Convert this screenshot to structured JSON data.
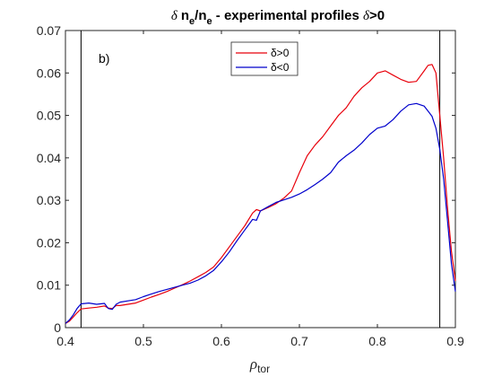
{
  "chart_data": {
    "type": "line",
    "title": {
      "delta": "δ",
      "n": "n",
      "sub_e": "e",
      "slash": "/n",
      "sub_e2": "e",
      "rest": " - experimental profiles ",
      "delta2": "δ",
      "cond": ">0"
    },
    "xlabel": {
      "rho": "ρ",
      "sub": "tor"
    },
    "ylabel": "",
    "panel_label": "b)",
    "xlim": [
      0.4,
      0.9
    ],
    "ylim": [
      0,
      0.07
    ],
    "xticks": [
      "0.4",
      "0.5",
      "0.6",
      "0.7",
      "0.8",
      "0.9"
    ],
    "yticks": [
      "0",
      "0.01",
      "0.02",
      "0.03",
      "0.04",
      "0.05",
      "0.06",
      "0.07"
    ],
    "vlines": [
      0.42,
      0.88
    ],
    "legend_position": "top-center",
    "grid": false,
    "series": [
      {
        "name": "δ>0",
        "color": "#e8000b",
        "x": [
          0.4,
          0.405,
          0.41,
          0.415,
          0.42,
          0.43,
          0.44,
          0.45,
          0.455,
          0.46,
          0.465,
          0.47,
          0.48,
          0.49,
          0.5,
          0.51,
          0.52,
          0.53,
          0.54,
          0.55,
          0.56,
          0.57,
          0.58,
          0.59,
          0.6,
          0.61,
          0.62,
          0.63,
          0.64,
          0.645,
          0.65,
          0.66,
          0.67,
          0.68,
          0.69,
          0.7,
          0.71,
          0.72,
          0.73,
          0.74,
          0.75,
          0.76,
          0.77,
          0.78,
          0.79,
          0.8,
          0.81,
          0.82,
          0.83,
          0.84,
          0.85,
          0.86,
          0.865,
          0.87,
          0.875,
          0.88,
          0.885,
          0.89,
          0.895,
          0.9
        ],
        "y": [
          0.001,
          0.0015,
          0.0025,
          0.0035,
          0.0044,
          0.0046,
          0.0048,
          0.0051,
          0.0046,
          0.0045,
          0.0052,
          0.0052,
          0.0055,
          0.0058,
          0.0065,
          0.0072,
          0.0078,
          0.0085,
          0.0093,
          0.0101,
          0.011,
          0.012,
          0.013,
          0.0143,
          0.0165,
          0.019,
          0.0215,
          0.024,
          0.027,
          0.0278,
          0.0275,
          0.0283,
          0.0292,
          0.0305,
          0.0322,
          0.0365,
          0.0405,
          0.043,
          0.045,
          0.0475,
          0.05,
          0.0518,
          0.0545,
          0.0565,
          0.058,
          0.06,
          0.0605,
          0.0595,
          0.0585,
          0.0578,
          0.058,
          0.0605,
          0.0618,
          0.062,
          0.06,
          0.05,
          0.04,
          0.028,
          0.018,
          0.011
        ]
      },
      {
        "name": "δ<0",
        "color": "#0000cc",
        "x": [
          0.4,
          0.405,
          0.41,
          0.415,
          0.42,
          0.43,
          0.44,
          0.45,
          0.455,
          0.46,
          0.465,
          0.47,
          0.48,
          0.49,
          0.5,
          0.51,
          0.52,
          0.53,
          0.54,
          0.55,
          0.56,
          0.57,
          0.58,
          0.59,
          0.6,
          0.61,
          0.62,
          0.63,
          0.64,
          0.645,
          0.65,
          0.66,
          0.67,
          0.68,
          0.69,
          0.7,
          0.71,
          0.72,
          0.73,
          0.74,
          0.75,
          0.76,
          0.77,
          0.78,
          0.79,
          0.8,
          0.81,
          0.82,
          0.83,
          0.84,
          0.85,
          0.86,
          0.865,
          0.87,
          0.875,
          0.88,
          0.885,
          0.89,
          0.895,
          0.9
        ],
        "y": [
          0.001,
          0.0018,
          0.003,
          0.0045,
          0.0056,
          0.0058,
          0.0055,
          0.0057,
          0.0045,
          0.0043,
          0.0055,
          0.006,
          0.0063,
          0.0066,
          0.0073,
          0.0079,
          0.0085,
          0.009,
          0.0095,
          0.01,
          0.0105,
          0.0112,
          0.0122,
          0.0135,
          0.0155,
          0.0178,
          0.0205,
          0.023,
          0.0255,
          0.0253,
          0.0275,
          0.0285,
          0.0295,
          0.0301,
          0.0307,
          0.0315,
          0.0325,
          0.0337,
          0.035,
          0.0365,
          0.039,
          0.0405,
          0.0418,
          0.0435,
          0.0455,
          0.047,
          0.0475,
          0.049,
          0.051,
          0.0525,
          0.0528,
          0.0522,
          0.051,
          0.0498,
          0.047,
          0.042,
          0.035,
          0.025,
          0.015,
          0.0085
        ]
      }
    ]
  }
}
